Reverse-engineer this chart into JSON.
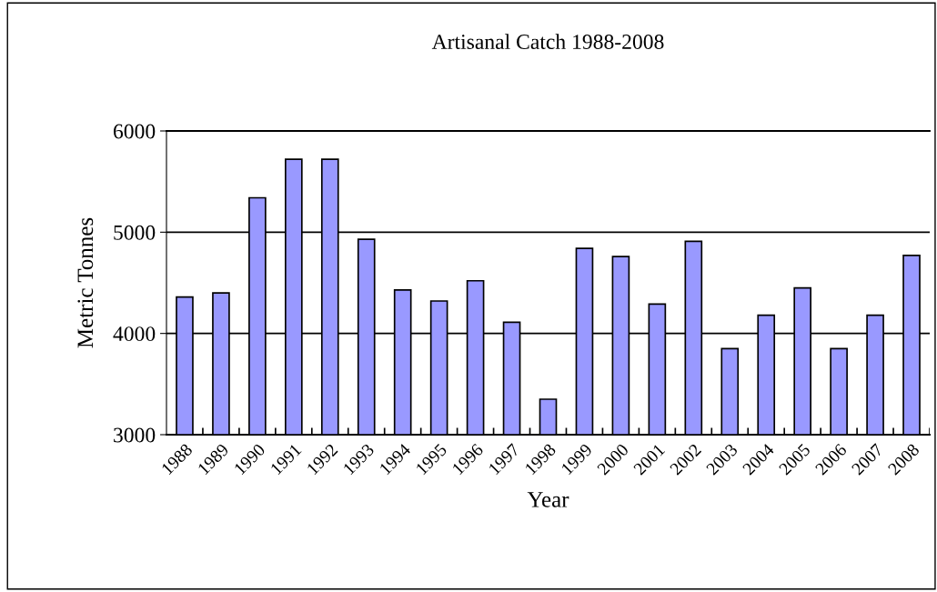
{
  "chart_data": {
    "type": "bar",
    "title": "Artisanal Catch 1988-2008",
    "xlabel": "Year",
    "ylabel": "Metric Tonnes",
    "categories": [
      "1988",
      "1989",
      "1990",
      "1991",
      "1992",
      "1993",
      "1994",
      "1995",
      "1996",
      "1997",
      "1998",
      "1999",
      "2000",
      "2001",
      "2002",
      "2003",
      "2004",
      "2005",
      "2006",
      "2007",
      "2008"
    ],
    "values": [
      4360,
      4400,
      5340,
      5720,
      5720,
      4930,
      4430,
      4320,
      4520,
      4110,
      3350,
      4840,
      4760,
      4290,
      4910,
      3850,
      4180,
      4450,
      3850,
      4180,
      4770
    ],
    "color": "#9999ff",
    "ylim": [
      3000,
      6000
    ],
    "yticks": [
      3000,
      4000,
      5000,
      6000
    ],
    "grid": "y",
    "legend": false
  }
}
